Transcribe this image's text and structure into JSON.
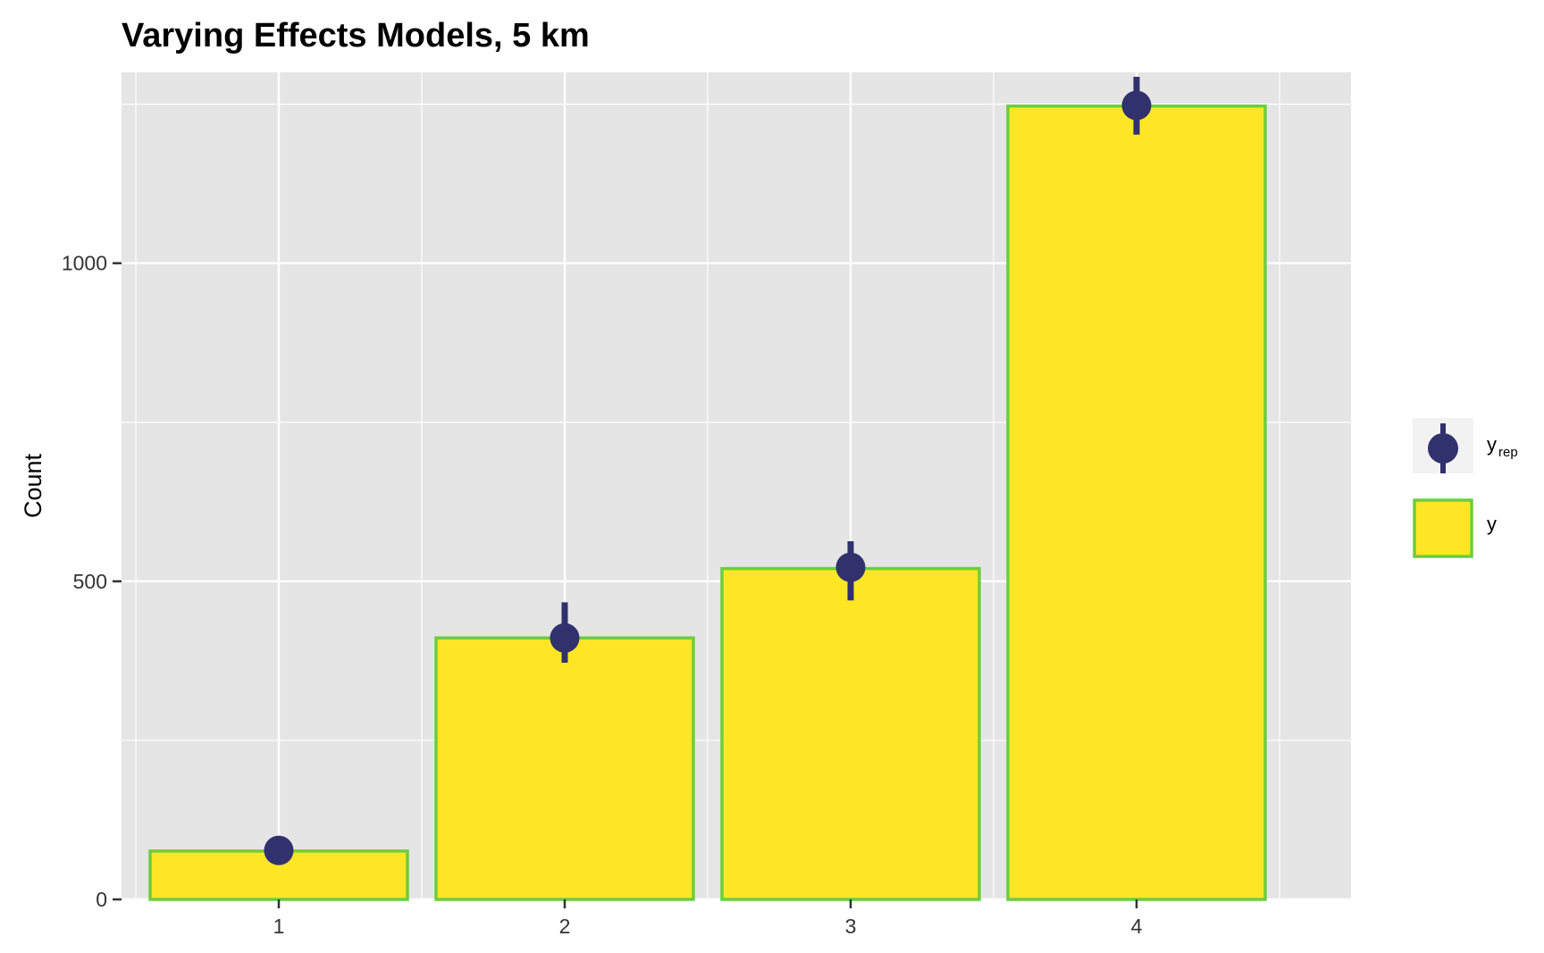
{
  "chart_data": {
    "type": "bar",
    "title": "Varying Effects Models, 5 km",
    "xlabel": "",
    "ylabel": "Count",
    "categories": [
      "1",
      "2",
      "3",
      "4"
    ],
    "y_ticks": [
      0,
      500,
      1000
    ],
    "y_tick_labels": [
      "0",
      "500",
      "1000"
    ],
    "ylim": [
      0,
      1300
    ],
    "grid": true,
    "legend_position": "right",
    "series": [
      {
        "name": "y",
        "kind": "bar",
        "values": [
          76,
          411,
          520,
          1247
        ],
        "fill": "#fde725",
        "stroke": "#6ccd3f"
      },
      {
        "name": "y_rep",
        "kind": "point-interval",
        "values": [
          77,
          411,
          522,
          1248
        ],
        "lower": [
          77,
          372,
          470,
          1202
        ],
        "upper": [
          77,
          467,
          563,
          1293
        ],
        "color": "#31316e"
      }
    ],
    "legend": {
      "rep_main": "y",
      "rep_sub": "rep",
      "obs_label": "y"
    }
  }
}
